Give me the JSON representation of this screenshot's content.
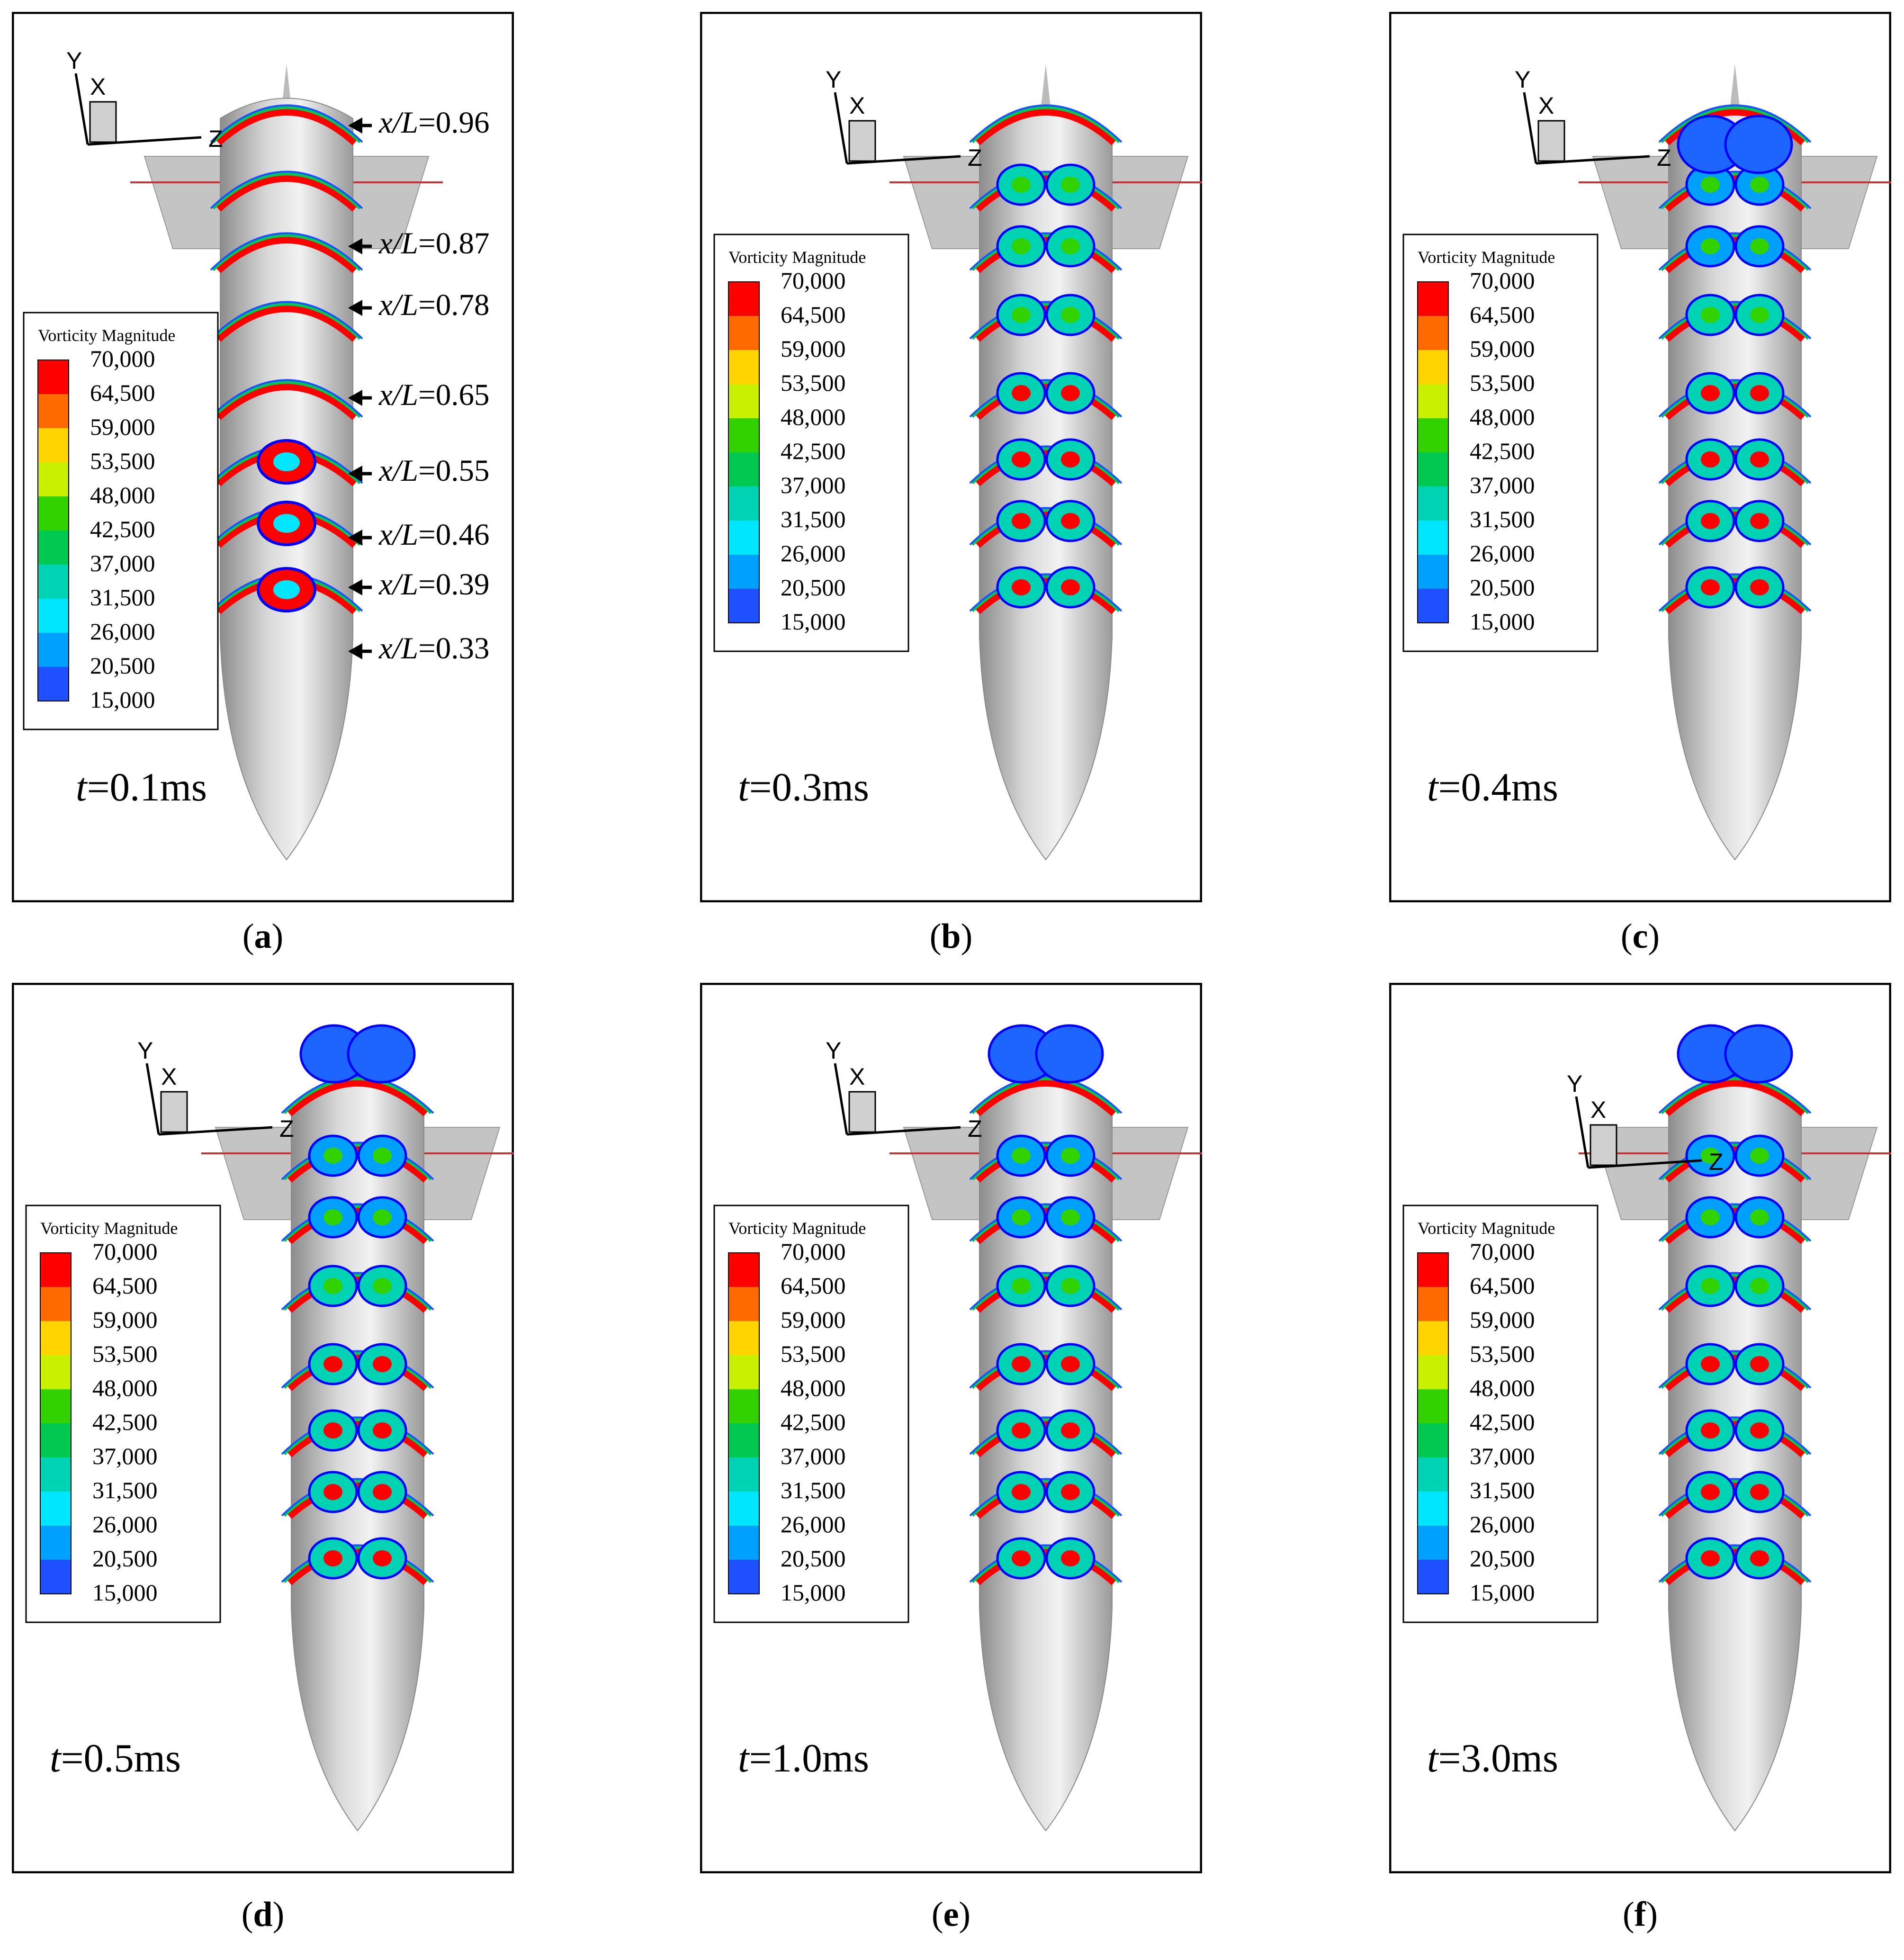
{
  "legend": {
    "title": "Vorticity Magnitude",
    "levels": [
      "70,000",
      "64,500",
      "59,000",
      "53,500",
      "48,000",
      "42,500",
      "37,000",
      "31,500",
      "26,000",
      "20,500",
      "15,000"
    ],
    "colors": [
      "#ff0000",
      "#ff6a00",
      "#ffd400",
      "#c8f000",
      "#32d200",
      "#00c850",
      "#00d2b4",
      "#00e6ff",
      "#00a0ff",
      "#1e50ff",
      "#0000ff"
    ]
  },
  "axes_labels": {
    "y": "Y",
    "x": "X",
    "z": "Z"
  },
  "time_prefix": "t",
  "panels": [
    {
      "id": "a",
      "time": "=0.1ms",
      "caption": "a",
      "stations": [
        {
          "x": "x/",
          "l": "L",
          "v": "=0.96"
        },
        {
          "x": "x/",
          "l": "L",
          "v": "=0.87"
        },
        {
          "x": "x/",
          "l": "L",
          "v": "=0.78"
        },
        {
          "x": "x/",
          "l": "L",
          "v": "=0.65"
        },
        {
          "x": "x/",
          "l": "L",
          "v": "=0.55"
        },
        {
          "x": "x/",
          "l": "L",
          "v": "=0.46"
        },
        {
          "x": "x/",
          "l": "L",
          "v": "=0.39"
        },
        {
          "x": "x/",
          "l": "L",
          "v": "=0.33"
        }
      ]
    },
    {
      "id": "b",
      "time": "=0.3ms",
      "caption": "b"
    },
    {
      "id": "c",
      "time": "=0.4ms",
      "caption": "c"
    },
    {
      "id": "d",
      "time": "=0.5ms",
      "caption": "d"
    },
    {
      "id": "e",
      "time": "=1.0ms",
      "caption": "e"
    },
    {
      "id": "f",
      "time": "=3.0ms",
      "caption": "f"
    }
  ]
}
